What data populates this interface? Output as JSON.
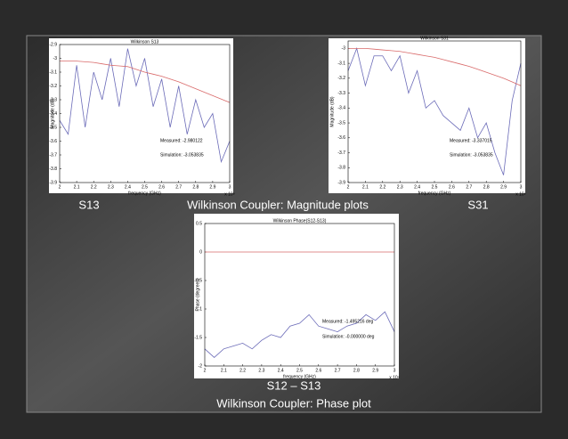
{
  "chart_data": [
    {
      "type": "line",
      "title": "Wilkinson S13",
      "xlabel": "frequency (GHz)",
      "ylabel": "Magnitude (dB)",
      "x_multiplier": "x 10⁹",
      "x": [
        2,
        2.05,
        2.1,
        2.15,
        2.2,
        2.25,
        2.3,
        2.35,
        2.4,
        2.45,
        2.5,
        2.55,
        2.6,
        2.65,
        2.7,
        2.75,
        2.8,
        2.85,
        2.9,
        2.95,
        3
      ],
      "series": [
        {
          "name": "Measured",
          "color": "#6b6bb8",
          "values": [
            -3.45,
            -3.55,
            -3.05,
            -3.5,
            -3.1,
            -3.3,
            -3.0,
            -3.35,
            -2.93,
            -3.2,
            -3.0,
            -3.35,
            -3.15,
            -3.5,
            -3.2,
            -3.55,
            -3.3,
            -3.5,
            -3.4,
            -3.75,
            -3.6
          ]
        },
        {
          "name": "Simulation",
          "color": "#d96a6a",
          "values": [
            -3.02,
            -3.02,
            -3.02,
            -3.025,
            -3.03,
            -3.04,
            -3.05,
            -3.055,
            -3.06,
            -3.08,
            -3.1,
            -3.115,
            -3.13,
            -3.15,
            -3.17,
            -3.195,
            -3.22,
            -3.245,
            -3.27,
            -3.295,
            -3.32
          ]
        }
      ],
      "annotations": [
        "Measured: -2.980122",
        "Simulation: -3.053835"
      ],
      "xlim": [
        2,
        3
      ],
      "xticks": [
        2,
        2.1,
        2.2,
        2.3,
        2.4,
        2.5,
        2.6,
        2.7,
        2.8,
        2.9,
        3
      ],
      "ylim": [
        -3.9,
        -2.9
      ],
      "yticks": [
        -3.9,
        -3.8,
        -3.7,
        -3.6,
        -3.5,
        -3.4,
        -3.3,
        -3.2,
        -3.1,
        -3,
        -2.9
      ]
    },
    {
      "type": "line",
      "title": "Wilkinson S31",
      "xlabel": "frequency (GHz)",
      "ylabel": "Magnitude (dB)",
      "x_multiplier": "x 10⁹",
      "x": [
        2,
        2.05,
        2.1,
        2.15,
        2.2,
        2.25,
        2.3,
        2.35,
        2.4,
        2.45,
        2.5,
        2.55,
        2.6,
        2.65,
        2.7,
        2.75,
        2.8,
        2.85,
        2.9,
        2.95,
        3
      ],
      "series": [
        {
          "name": "Measured",
          "color": "#6b6bb8",
          "values": [
            -3.15,
            -3.0,
            -3.25,
            -3.05,
            -3.05,
            -3.15,
            -3.05,
            -3.3,
            -3.15,
            -3.4,
            -3.35,
            -3.45,
            -3.5,
            -3.55,
            -3.4,
            -3.6,
            -3.5,
            -3.7,
            -3.85,
            -3.35,
            -3.1
          ]
        },
        {
          "name": "Simulation",
          "color": "#d96a6a",
          "values": [
            -3.0,
            -3.0,
            -3.0,
            -3.005,
            -3.01,
            -3.015,
            -3.02,
            -3.03,
            -3.04,
            -3.05,
            -3.06,
            -3.075,
            -3.09,
            -3.105,
            -3.12,
            -3.14,
            -3.16,
            -3.18,
            -3.2,
            -3.225,
            -3.25
          ]
        }
      ],
      "annotations": [
        "Measured: -3.337015",
        "Simulation: -3.053835"
      ],
      "xlim": [
        2,
        3
      ],
      "xticks": [
        2,
        2.1,
        2.2,
        2.3,
        2.4,
        2.5,
        2.6,
        2.7,
        2.8,
        2.9,
        3
      ],
      "ylim": [
        -3.9,
        -2.95
      ],
      "yticks": [
        -3.9,
        -3.8,
        -3.7,
        -3.6,
        -3.5,
        -3.4,
        -3.3,
        -3.2,
        -3.1,
        -3
      ]
    },
    {
      "type": "line",
      "title": "Wilkinson Phase(S12-S13)",
      "xlabel": "frequency (GHz)",
      "ylabel": "Phase (degrees)",
      "x_multiplier": "x 10⁹",
      "x": [
        2,
        2.05,
        2.1,
        2.15,
        2.2,
        2.25,
        2.3,
        2.35,
        2.4,
        2.45,
        2.5,
        2.55,
        2.6,
        2.65,
        2.7,
        2.75,
        2.8,
        2.85,
        2.9,
        2.95,
        3
      ],
      "series": [
        {
          "name": "Measured",
          "color": "#6b6bb8",
          "values": [
            -1.7,
            -1.85,
            -1.7,
            -1.65,
            -1.6,
            -1.7,
            -1.55,
            -1.45,
            -1.5,
            -1.3,
            -1.25,
            -1.1,
            -1.3,
            -1.35,
            -1.4,
            -1.3,
            -1.25,
            -1.1,
            -1.2,
            -1.05,
            -1.4
          ]
        },
        {
          "name": "Simulation",
          "color": "#d96a6a",
          "values": [
            0,
            0,
            0,
            0,
            0,
            0,
            0,
            0,
            0,
            0,
            0,
            0,
            0,
            0,
            0,
            0,
            0,
            0,
            0,
            0,
            0
          ]
        }
      ],
      "annotations": [
        "Measured: -1.495216 deg",
        "Simulation: -0.000000 deg"
      ],
      "xlim": [
        2,
        3
      ],
      "xticks": [
        2,
        2.1,
        2.2,
        2.3,
        2.4,
        2.5,
        2.6,
        2.7,
        2.8,
        2.9,
        3
      ],
      "ylim": [
        -2,
        0.5
      ],
      "yticks": [
        -2,
        -1.5,
        -1,
        -0.5,
        0,
        0.5
      ]
    }
  ],
  "captions": {
    "left": "S13",
    "magnitude": "Wilkinson Coupler: Magnitude plots",
    "right": "S31",
    "phase_pair": "S12 – S13",
    "phase": "Wilkinson Coupler: Phase plot"
  }
}
